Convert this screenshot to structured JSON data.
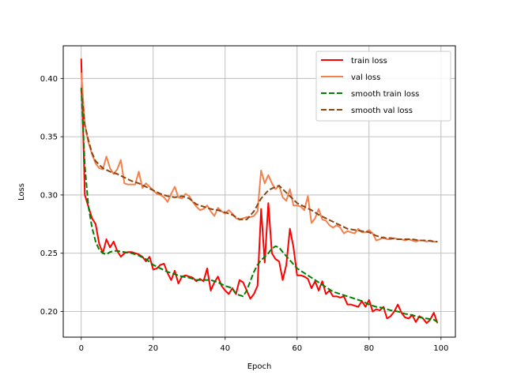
{
  "chart_data": {
    "type": "line",
    "title": "",
    "xlabel": "Epoch",
    "ylabel": "Loss",
    "xlim": [
      -5,
      104
    ],
    "ylim": [
      0.178,
      0.428
    ],
    "xticks": [
      0,
      20,
      40,
      60,
      80,
      100
    ],
    "xtick_labels": [
      "0",
      "20",
      "40",
      "60",
      "80",
      "100"
    ],
    "yticks": [
      0.2,
      0.25,
      0.3,
      0.35,
      0.4
    ],
    "ytick_labels": [
      "0.20",
      "0.25",
      "0.30",
      "0.35",
      "0.40"
    ],
    "grid": true,
    "legend_position": "top-right",
    "series": [
      {
        "name": "train loss",
        "color": "#ff0000",
        "style": "solid",
        "x": [
          0,
          1,
          2,
          3,
          4,
          5,
          6,
          7,
          8,
          9,
          10,
          11,
          12,
          13,
          14,
          15,
          16,
          17,
          18,
          19,
          20,
          21,
          22,
          23,
          24,
          25,
          26,
          27,
          28,
          29,
          30,
          31,
          32,
          33,
          34,
          35,
          36,
          37,
          38,
          39,
          40,
          41,
          42,
          43,
          44,
          45,
          46,
          47,
          48,
          49,
          50,
          51,
          52,
          53,
          54,
          55,
          56,
          57,
          58,
          59,
          60,
          61,
          62,
          63,
          64,
          65,
          66,
          67,
          68,
          69,
          70,
          71,
          72,
          73,
          74,
          75,
          76,
          77,
          78,
          79,
          80,
          81,
          82,
          83,
          84,
          85,
          86,
          87,
          88,
          89,
          90,
          91,
          92,
          93,
          94,
          95,
          96,
          97,
          98,
          99
        ],
        "y": [
          0.417,
          0.3,
          0.29,
          0.28,
          0.275,
          0.258,
          0.25,
          0.262,
          0.255,
          0.26,
          0.252,
          0.247,
          0.25,
          0.251,
          0.251,
          0.25,
          0.249,
          0.247,
          0.243,
          0.247,
          0.236,
          0.237,
          0.24,
          0.241,
          0.233,
          0.227,
          0.235,
          0.224,
          0.23,
          0.231,
          0.23,
          0.229,
          0.226,
          0.228,
          0.226,
          0.237,
          0.218,
          0.225,
          0.23,
          0.222,
          0.218,
          0.215,
          0.22,
          0.215,
          0.227,
          0.225,
          0.218,
          0.211,
          0.215,
          0.222,
          0.288,
          0.242,
          0.293,
          0.25,
          0.245,
          0.243,
          0.227,
          0.24,
          0.271,
          0.255,
          0.231,
          0.231,
          0.23,
          0.228,
          0.22,
          0.226,
          0.218,
          0.226,
          0.215,
          0.218,
          0.213,
          0.213,
          0.212,
          0.213,
          0.206,
          0.206,
          0.205,
          0.204,
          0.209,
          0.204,
          0.21,
          0.2,
          0.202,
          0.201,
          0.204,
          0.194,
          0.196,
          0.2,
          0.206,
          0.199,
          0.195,
          0.194,
          0.197,
          0.191,
          0.196,
          0.194,
          0.19,
          0.193,
          0.199,
          0.19
        ]
      },
      {
        "name": "val loss",
        "color": "#f4804c",
        "style": "solid",
        "x": [
          0,
          1,
          2,
          3,
          4,
          5,
          6,
          7,
          8,
          9,
          10,
          11,
          12,
          13,
          14,
          15,
          16,
          17,
          18,
          19,
          20,
          21,
          22,
          23,
          24,
          25,
          26,
          27,
          28,
          29,
          30,
          31,
          32,
          33,
          34,
          35,
          36,
          37,
          38,
          39,
          40,
          41,
          42,
          43,
          44,
          45,
          46,
          47,
          48,
          49,
          50,
          51,
          52,
          53,
          54,
          55,
          56,
          57,
          58,
          59,
          60,
          61,
          62,
          63,
          64,
          65,
          66,
          67,
          68,
          69,
          70,
          71,
          72,
          73,
          74,
          75,
          76,
          77,
          78,
          79,
          80,
          81,
          82,
          83,
          84,
          85,
          86,
          87,
          88,
          89,
          90,
          91,
          92,
          93,
          94,
          95,
          96,
          97,
          98,
          99
        ],
        "y": [
          0.405,
          0.36,
          0.345,
          0.335,
          0.327,
          0.323,
          0.322,
          0.333,
          0.323,
          0.318,
          0.322,
          0.33,
          0.31,
          0.309,
          0.309,
          0.309,
          0.32,
          0.306,
          0.31,
          0.307,
          0.304,
          0.301,
          0.3,
          0.298,
          0.294,
          0.301,
          0.307,
          0.298,
          0.297,
          0.301,
          0.299,
          0.294,
          0.29,
          0.287,
          0.288,
          0.291,
          0.286,
          0.282,
          0.289,
          0.286,
          0.284,
          0.287,
          0.284,
          0.28,
          0.279,
          0.28,
          0.281,
          0.281,
          0.282,
          0.286,
          0.321,
          0.31,
          0.317,
          0.31,
          0.305,
          0.308,
          0.298,
          0.295,
          0.305,
          0.291,
          0.291,
          0.29,
          0.287,
          0.299,
          0.276,
          0.28,
          0.288,
          0.279,
          0.278,
          0.274,
          0.272,
          0.274,
          0.272,
          0.267,
          0.269,
          0.268,
          0.267,
          0.271,
          0.268,
          0.268,
          0.27,
          0.267,
          0.261,
          0.262,
          0.264,
          0.262,
          0.262,
          0.263,
          0.262,
          0.262,
          0.261,
          0.262,
          0.261,
          0.26,
          0.261,
          0.261,
          0.26,
          0.261,
          0.26,
          0.26
        ]
      },
      {
        "name": "smooth train loss",
        "color": "#008000",
        "style": "dashed",
        "x": [
          0,
          1,
          2,
          3,
          4,
          5,
          6,
          7,
          8,
          9,
          10,
          12,
          14,
          16,
          18,
          20,
          22,
          24,
          26,
          28,
          30,
          32,
          34,
          36,
          38,
          40,
          42,
          43,
          44,
          45,
          46,
          47,
          48,
          49,
          50,
          51,
          52,
          53,
          54,
          55,
          56,
          58,
          60,
          62,
          64,
          66,
          68,
          70,
          72,
          74,
          76,
          78,
          80,
          82,
          84,
          86,
          88,
          90,
          92,
          94,
          96,
          98,
          99
        ],
        "y": [
          0.392,
          0.325,
          0.29,
          0.272,
          0.26,
          0.253,
          0.25,
          0.249,
          0.251,
          0.252,
          0.252,
          0.251,
          0.25,
          0.248,
          0.245,
          0.24,
          0.237,
          0.234,
          0.232,
          0.23,
          0.229,
          0.227,
          0.227,
          0.227,
          0.225,
          0.222,
          0.22,
          0.215,
          0.214,
          0.213,
          0.218,
          0.226,
          0.234,
          0.24,
          0.244,
          0.247,
          0.25,
          0.254,
          0.256,
          0.255,
          0.251,
          0.244,
          0.237,
          0.233,
          0.229,
          0.225,
          0.221,
          0.217,
          0.215,
          0.213,
          0.211,
          0.209,
          0.206,
          0.204,
          0.203,
          0.201,
          0.2,
          0.198,
          0.197,
          0.195,
          0.194,
          0.193,
          0.191
        ]
      },
      {
        "name": "smooth val loss",
        "color": "#8b4513",
        "style": "dashed",
        "x": [
          0,
          1,
          2,
          3,
          4,
          5,
          6,
          8,
          10,
          12,
          14,
          16,
          18,
          20,
          22,
          24,
          26,
          28,
          30,
          32,
          34,
          36,
          38,
          40,
          42,
          44,
          46,
          48,
          50,
          52,
          54,
          55,
          56,
          58,
          60,
          62,
          64,
          66,
          68,
          70,
          72,
          74,
          76,
          78,
          80,
          82,
          84,
          86,
          88,
          90,
          92,
          94,
          96,
          98,
          99
        ],
        "y": [
          0.39,
          0.36,
          0.347,
          0.336,
          0.329,
          0.326,
          0.323,
          0.32,
          0.318,
          0.315,
          0.312,
          0.31,
          0.307,
          0.304,
          0.301,
          0.299,
          0.298,
          0.299,
          0.297,
          0.292,
          0.29,
          0.288,
          0.287,
          0.285,
          0.283,
          0.279,
          0.279,
          0.286,
          0.297,
          0.304,
          0.307,
          0.308,
          0.305,
          0.299,
          0.293,
          0.29,
          0.287,
          0.283,
          0.28,
          0.277,
          0.274,
          0.271,
          0.27,
          0.269,
          0.268,
          0.265,
          0.263,
          0.263,
          0.262,
          0.262,
          0.262,
          0.261,
          0.261,
          0.26,
          0.26
        ]
      }
    ]
  }
}
